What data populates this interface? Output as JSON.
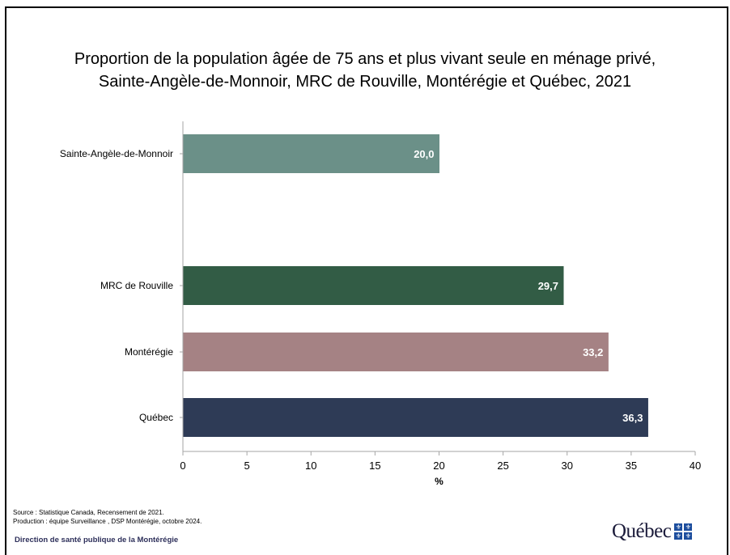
{
  "chart_data": {
    "type": "bar",
    "orientation": "horizontal",
    "title": "Proportion de la population âgée de 75 ans et plus vivant seule en ménage privé,",
    "subtitle": "Sainte-Angèle-de-Monnoir, MRC de Rouville, Montérégie et Québec, 2021",
    "categories": [
      "Sainte-Angèle-de-Monnoir",
      "MRC de Rouville",
      "Montérégie",
      "Québec"
    ],
    "values": [
      20.0,
      29.7,
      33.2,
      36.3
    ],
    "value_labels": [
      "20,0",
      "29,7",
      "33,2",
      "36,3"
    ],
    "colors": [
      "#6b9088",
      "#325c45",
      "#a58284",
      "#2e3b56"
    ],
    "xlabel": "%",
    "ylabel": "",
    "xlim": [
      0,
      40
    ],
    "xticks": [
      0,
      5,
      10,
      15,
      20,
      25,
      30,
      35,
      40
    ],
    "grid": false,
    "legend": "none"
  },
  "footer": {
    "source_line1": "Source : Statistique Canada, Recensement de 2021.",
    "source_line2": "Production : équipe Surveillance  , DSP Montérégie, octobre 2024.",
    "organization": "Direction de santé publique de la Montérégie",
    "logo_text": "Québec"
  }
}
